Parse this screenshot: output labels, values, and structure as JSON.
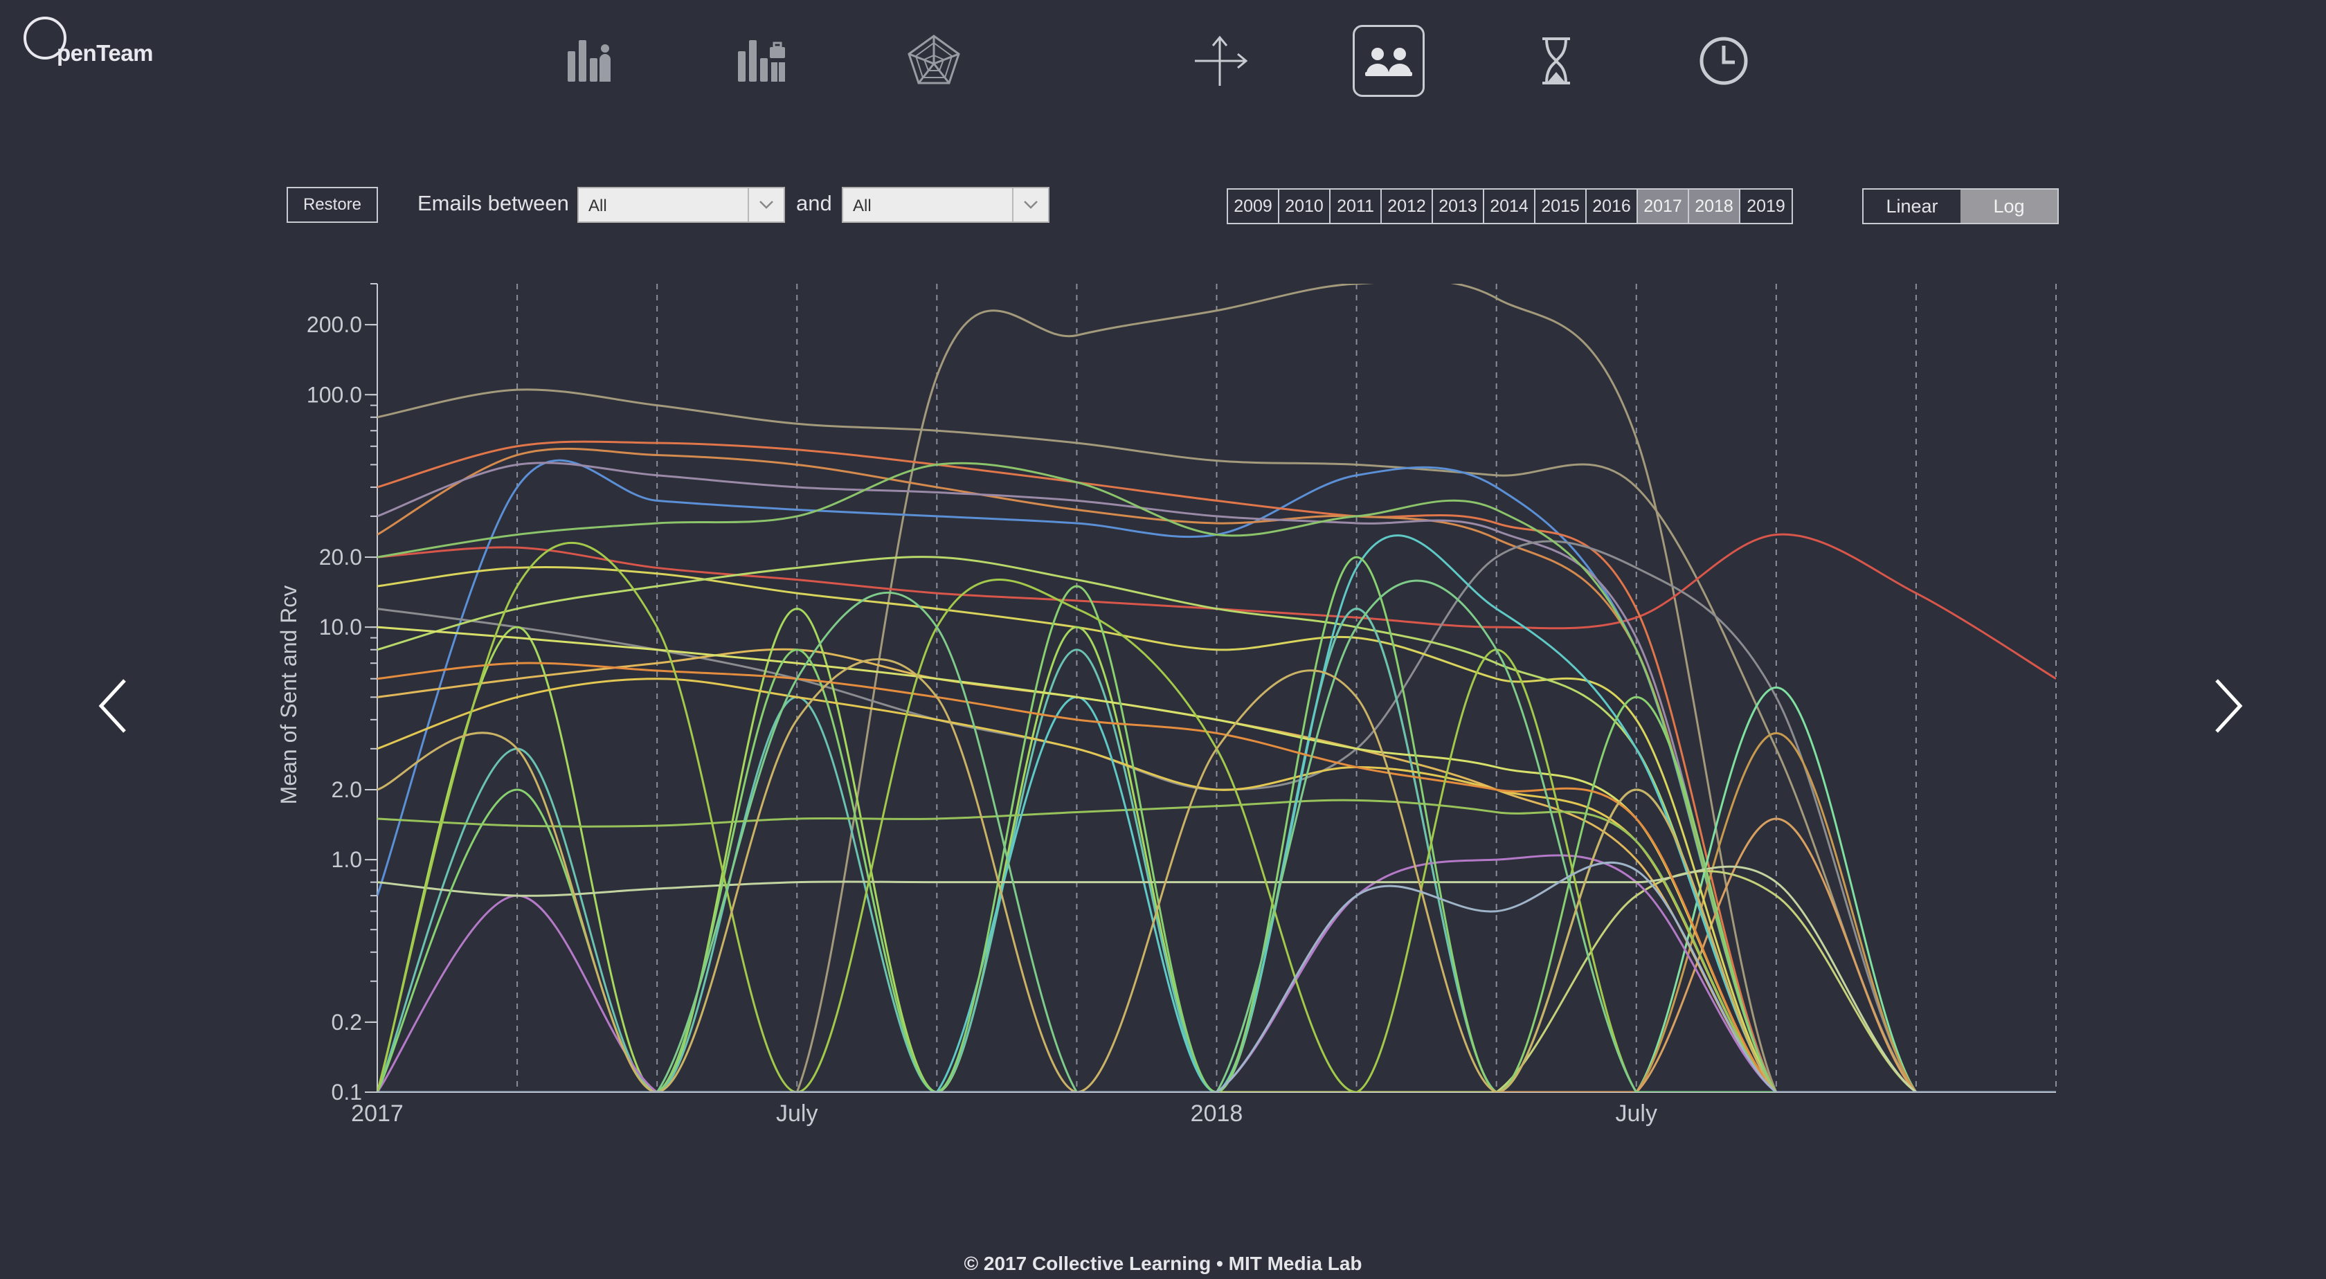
{
  "brand": {
    "logo_text": "penTeam"
  },
  "nav": [
    {
      "name": "team-bar-chart-icon",
      "active": false
    },
    {
      "name": "project-bar-chart-icon",
      "active": false
    },
    {
      "name": "radar-chart-icon",
      "active": false
    },
    {
      "name": "network-axes-icon",
      "active": false
    },
    {
      "name": "people-icon",
      "active": true
    },
    {
      "name": "hourglass-icon",
      "active": false
    },
    {
      "name": "clock-icon",
      "active": false
    }
  ],
  "controls": {
    "restore_label": "Restore",
    "emails_between_label": "Emails between",
    "and_label": "and",
    "from_value": "All",
    "to_value": "All",
    "years": [
      "2009",
      "2010",
      "2011",
      "2012",
      "2013",
      "2014",
      "2015",
      "2016",
      "2017",
      "2018",
      "2019"
    ],
    "selected_years": [
      "2017",
      "2018"
    ],
    "scale_options": [
      "Linear",
      "Log"
    ],
    "selected_scale": "Log"
  },
  "footer": {
    "text": "© 2017 Collective Learning  •  MIT Media Lab"
  },
  "chart_data": {
    "type": "line",
    "ylabel": "Mean of Sent and Rcv",
    "yscale": "log",
    "ylim": [
      0.1,
      300
    ],
    "y_ticks": [
      0.1,
      0.2,
      1.0,
      2.0,
      10.0,
      20.0,
      100.0,
      200.0
    ],
    "y_tick_labels": [
      "0.1",
      "0.2",
      "1.0",
      "2.0",
      "10.0",
      "20.0",
      "100.0",
      "200.0"
    ],
    "x": [
      "2017-01",
      "2017-03",
      "2017-05",
      "2017-07",
      "2017-09",
      "2017-11",
      "2018-01",
      "2018-03",
      "2018-05",
      "2018-07",
      "2018-09",
      "2018-11",
      "2019-01"
    ],
    "x_tick_labels": [
      {
        "at": "2017-01",
        "label": "2017"
      },
      {
        "at": "2017-07",
        "label": "July"
      },
      {
        "at": "2018-01",
        "label": "2018"
      },
      {
        "at": "2018-07",
        "label": "July"
      }
    ],
    "grid": "dashed vertical every 2 months",
    "series": [
      {
        "color": "#a39a7c",
        "values": [
          80,
          105,
          90,
          75,
          70,
          62,
          52,
          50,
          45,
          40,
          3,
          0.1,
          0.1
        ]
      },
      {
        "color": "#a39a7c",
        "values": [
          0.1,
          0.1,
          0.1,
          0.1,
          120,
          180,
          230,
          300,
          260,
          65,
          0.1,
          0.1,
          0.1
        ]
      },
      {
        "color": "#d9564a",
        "values": [
          20,
          22,
          18,
          16,
          14,
          13,
          12,
          11,
          10,
          11,
          25,
          14,
          6
        ]
      },
      {
        "color": "#5b8fd6",
        "values": [
          0.7,
          40,
          35,
          32,
          30,
          28,
          25,
          45,
          40,
          8,
          0.1,
          0.1,
          0.1
        ]
      },
      {
        "color": "#e0764a",
        "values": [
          40,
          60,
          62,
          58,
          50,
          42,
          35,
          30,
          28,
          12,
          0.1,
          0.1,
          0.1
        ]
      },
      {
        "color": "#d58a4e",
        "values": [
          25,
          55,
          55,
          50,
          40,
          32,
          28,
          30,
          24,
          8,
          0.1,
          0.1,
          0.1
        ]
      },
      {
        "color": "#9a8aa8",
        "values": [
          30,
          50,
          45,
          40,
          38,
          35,
          30,
          28,
          26,
          9,
          0.1,
          0.1,
          0.1
        ]
      },
      {
        "color": "#8a8c90",
        "values": [
          12,
          10,
          8,
          6,
          4,
          3,
          2,
          3,
          20,
          18,
          5,
          0.1,
          0.1
        ]
      },
      {
        "color": "#8bc46a",
        "values": [
          20,
          25,
          28,
          30,
          50,
          42,
          25,
          30,
          32,
          8,
          0.1,
          0.1,
          0.1
        ]
      },
      {
        "color": "#7fe0a0",
        "values": [
          0.1,
          0.1,
          0.1,
          0.1,
          0.1,
          0.1,
          0.1,
          0.1,
          0.1,
          0.1,
          5.5,
          0.1,
          0.1
        ]
      },
      {
        "color": "#c79a4e",
        "values": [
          0.1,
          0.1,
          0.1,
          0.1,
          0.1,
          0.1,
          0.1,
          0.1,
          0.1,
          0.1,
          3.5,
          0.1,
          0.1
        ]
      },
      {
        "color": "#d8a060",
        "values": [
          0.1,
          0.1,
          0.1,
          0.1,
          0.1,
          0.1,
          0.1,
          0.1,
          0.1,
          0.1,
          1.5,
          0.1,
          0.1
        ]
      },
      {
        "color": "#c6d27a",
        "values": [
          0.1,
          0.1,
          0.1,
          0.1,
          0.1,
          0.1,
          0.1,
          0.1,
          0.1,
          0.7,
          0.7,
          0.1,
          0.1
        ]
      },
      {
        "color": "#d8d45c",
        "values": [
          15,
          18,
          17,
          14,
          12,
          10,
          8,
          9,
          6,
          4,
          0.1,
          0.1,
          0.1
        ]
      },
      {
        "color": "#b9d86a",
        "values": [
          8,
          12,
          15,
          18,
          20,
          16,
          12,
          10,
          7,
          3,
          0.1,
          0.1,
          0.1
        ]
      },
      {
        "color": "#e0b85a",
        "values": [
          5,
          6,
          7,
          8,
          6,
          5,
          4,
          3,
          2,
          1,
          0.1,
          0.1,
          0.1
        ]
      },
      {
        "color": "#a7d85e",
        "values": [
          0.1,
          10,
          0.1,
          12,
          0.1,
          10,
          0.1,
          12,
          0.1,
          2,
          0.1,
          0.1,
          0.1
        ]
      },
      {
        "color": "#6ac2b0",
        "values": [
          0.1,
          3,
          0.1,
          5,
          0.1,
          8,
          0.1,
          12,
          0.1,
          2,
          0.1,
          0.1,
          0.1
        ]
      },
      {
        "color": "#e2c852",
        "values": [
          3,
          5,
          6,
          5,
          4,
          3,
          2,
          2.5,
          2,
          1.2,
          0.1,
          0.1,
          0.1
        ]
      },
      {
        "color": "#98c25a",
        "values": [
          1.5,
          1.4,
          1.4,
          1.5,
          1.5,
          1.6,
          1.7,
          1.8,
          1.6,
          1.2,
          0.1,
          0.1,
          0.1
        ]
      },
      {
        "color": "#b47ac8",
        "values": [
          0.1,
          0.7,
          0.1,
          0.1,
          0.1,
          0.1,
          0.1,
          0.7,
          1.0,
          0.8,
          0.1,
          0.1,
          0.1
        ]
      },
      {
        "color": "#5fc9c6",
        "values": [
          0.1,
          0.1,
          0.1,
          0.1,
          0.1,
          5,
          0.1,
          18,
          12,
          3,
          0.1,
          0.1,
          0.1
        ]
      },
      {
        "color": "#d6e06a",
        "values": [
          10,
          9,
          8,
          7,
          6,
          5,
          4,
          3,
          2.5,
          1.5,
          0.1,
          0.1,
          0.1
        ]
      },
      {
        "color": "#c3d4a0",
        "values": [
          0.8,
          0.7,
          0.75,
          0.8,
          0.8,
          0.8,
          0.8,
          0.8,
          0.8,
          0.8,
          0.8,
          0.1,
          0.1
        ]
      },
      {
        "color": "#88d070",
        "values": [
          0.1,
          2,
          0.1,
          8,
          0.1,
          15,
          0.1,
          20,
          0.1,
          5,
          0.1,
          0.1,
          0.1
        ]
      },
      {
        "color": "#e58d3e",
        "values": [
          6,
          7,
          6.5,
          6,
          5,
          4,
          3.5,
          2.5,
          2,
          1.5,
          0.1,
          0.1,
          0.1
        ]
      },
      {
        "color": "#a2c94a",
        "values": [
          0.1,
          15,
          10,
          0.1,
          10,
          12,
          3,
          0.1,
          8,
          0.1,
          0.1,
          0.1,
          0.1
        ]
      },
      {
        "color": "#7ecb8a",
        "values": [
          0.1,
          0.1,
          0.1,
          6,
          10,
          0.1,
          0.1,
          10,
          8,
          0.1,
          0.1,
          0.1,
          0.1
        ]
      },
      {
        "color": "#cbb366",
        "values": [
          2,
          3,
          0.1,
          4,
          5,
          0.1,
          3,
          5,
          0.1,
          2,
          0.1,
          0.1,
          0.1
        ]
      },
      {
        "color": "#9fb4c8",
        "values": [
          0.1,
          0.1,
          0.1,
          0.1,
          0.1,
          0.1,
          0.1,
          0.7,
          0.6,
          0.9,
          0.1,
          0.1,
          0.1
        ]
      }
    ]
  }
}
